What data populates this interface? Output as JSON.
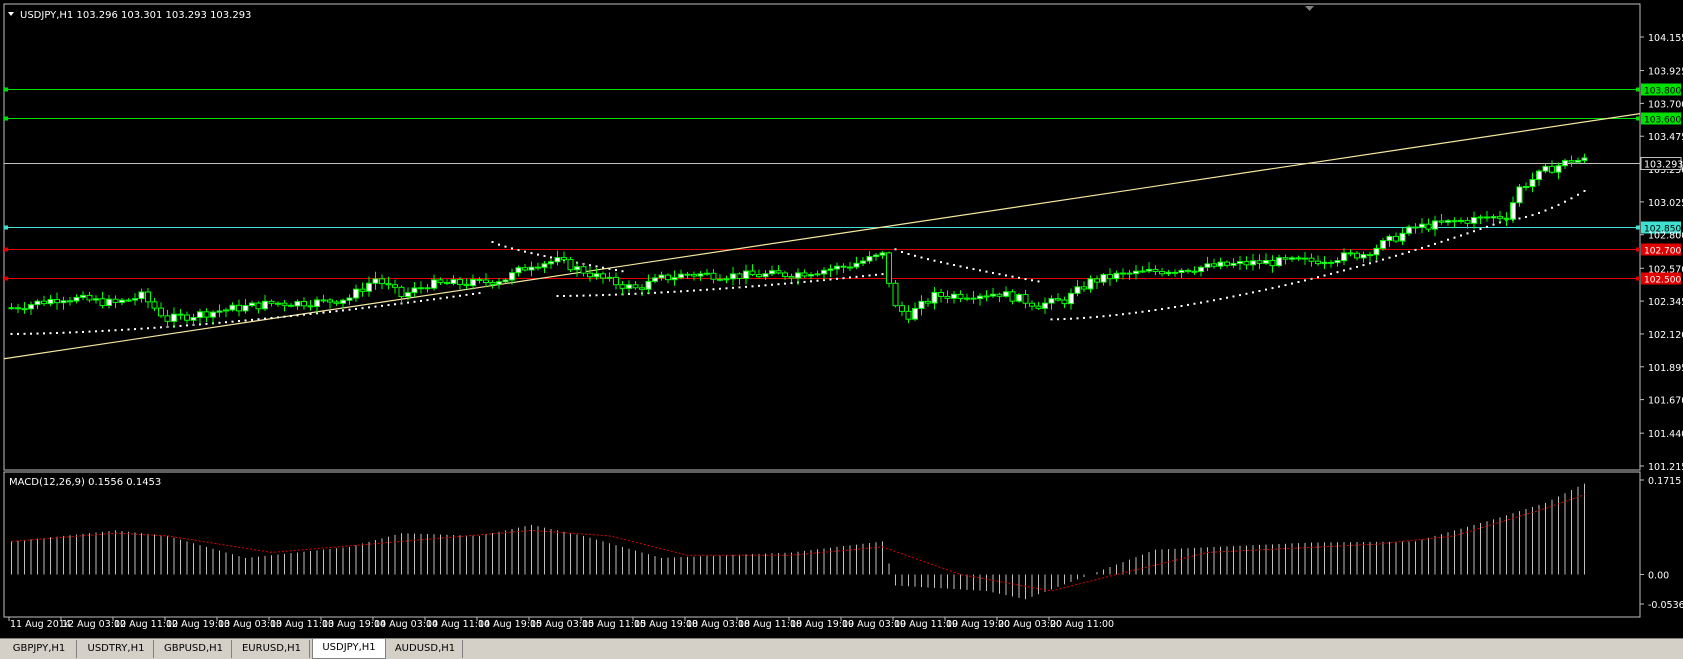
{
  "window": {
    "symbol_info": "USDJPY,H1  103.296 103.301 103.293 103.293",
    "collapse_icon": "triangle-down-icon"
  },
  "colors": {
    "background": "#000000",
    "frame": "#c0c0c0",
    "bull_candle": "#ffffff",
    "bear_candle": "#000000",
    "candle_wick": "#00ff00",
    "sar_dots": "#ffffff",
    "trendline": "#f5e6a0",
    "level_green": "#00e000",
    "level_cyan": "#40e0d0",
    "level_red": "#e00000",
    "bid_line": "#c0c0c0",
    "macd_hist": "#c0c0c0",
    "macd_signal": "#e00000"
  },
  "price_axis": {
    "ticks": [
      "104.155",
      "103.925",
      "103.700",
      "103.475",
      "103.250",
      "103.025",
      "102.800",
      "102.570",
      "102.345",
      "102.120",
      "101.895",
      "101.670",
      "101.440",
      "101.215"
    ],
    "current_price": "103.293"
  },
  "levels": [
    {
      "price": 103.8,
      "label": "103.800",
      "color": "#00e000",
      "text_color": "#000000"
    },
    {
      "price": 103.6,
      "label": "103.600",
      "color": "#00e000",
      "text_color": "#000000"
    },
    {
      "price": 102.85,
      "label": "102.850",
      "color": "#40e0d0",
      "text_color": "#000000"
    },
    {
      "price": 102.7,
      "label": "102.700",
      "color": "#e00000",
      "text_color": "#ffffff"
    },
    {
      "price": 102.5,
      "label": "102.500",
      "color": "#e00000",
      "text_color": "#ffffff"
    }
  ],
  "trendline": {
    "start": {
      "bar": 0,
      "price": 101.95
    },
    "end": {
      "bar": 252,
      "price": 103.63
    }
  },
  "time_axis": {
    "labels": [
      "11 Aug 2014",
      "12 Aug 03:00",
      "12 Aug 11:00",
      "12 Aug 19:00",
      "13 Aug 03:00",
      "13 Aug 11:00",
      "13 Aug 19:00",
      "14 Aug 03:00",
      "14 Aug 11:00",
      "14 Aug 19:00",
      "15 Aug 03:00",
      "15 Aug 11:00",
      "15 Aug 19:00",
      "18 Aug 03:00",
      "18 Aug 11:00",
      "18 Aug 19:00",
      "19 Aug 03:00",
      "19 Aug 11:00",
      "19 Aug 19:00",
      "20 Aug 03:00",
      "20 Aug 11:00"
    ],
    "bars_per_label": 8
  },
  "macd": {
    "title": "MACD(12,26,9) 0.1556 0.1453",
    "ticks": [
      "0.1715",
      "0.00",
      "-0.0536"
    ],
    "range": [
      -0.0536,
      0.1715
    ]
  },
  "chart_data": {
    "type": "candlestick",
    "timeframe": "H1",
    "price_range": [
      101.215,
      104.155
    ],
    "anchors": [
      [
        0,
        102.3
      ],
      [
        8,
        102.37
      ],
      [
        16,
        102.33
      ],
      [
        20,
        102.38
      ],
      [
        24,
        102.22
      ],
      [
        32,
        102.28
      ],
      [
        40,
        102.33
      ],
      [
        48,
        102.34
      ],
      [
        52,
        102.37
      ],
      [
        56,
        102.5
      ],
      [
        60,
        102.38
      ],
      [
        64,
        102.46
      ],
      [
        72,
        102.47
      ],
      [
        76,
        102.5
      ],
      [
        80,
        102.6
      ],
      [
        84,
        102.62
      ],
      [
        88,
        102.55
      ],
      [
        92,
        102.48
      ],
      [
        96,
        102.43
      ],
      [
        100,
        102.5
      ],
      [
        104,
        102.53
      ],
      [
        112,
        102.52
      ],
      [
        120,
        102.53
      ],
      [
        128,
        102.58
      ],
      [
        134,
        102.66
      ],
      [
        136,
        102.3
      ],
      [
        138,
        102.25
      ],
      [
        142,
        102.38
      ],
      [
        152,
        102.4
      ],
      [
        158,
        102.32
      ],
      [
        162,
        102.35
      ],
      [
        166,
        102.48
      ],
      [
        170,
        102.52
      ],
      [
        176,
        102.55
      ],
      [
        184,
        102.58
      ],
      [
        192,
        102.61
      ],
      [
        200,
        102.62
      ],
      [
        208,
        102.67
      ],
      [
        216,
        102.85
      ],
      [
        224,
        102.9
      ],
      [
        230,
        102.93
      ],
      [
        232,
        103.12
      ],
      [
        236,
        103.24
      ],
      [
        240,
        103.31
      ],
      [
        242,
        103.31
      ]
    ],
    "sar_segments": [
      {
        "from": 0,
        "to": 72,
        "start": 102.12,
        "end": 102.4,
        "side": "below"
      },
      {
        "from": 74,
        "to": 94,
        "start": 102.75,
        "end": 102.55,
        "side": "above"
      },
      {
        "from": 84,
        "to": 134,
        "start": 102.38,
        "end": 102.53,
        "side": "below"
      },
      {
        "from": 136,
        "to": 158,
        "start": 102.7,
        "end": 102.48,
        "side": "above"
      },
      {
        "from": 160,
        "to": 230,
        "start": 102.22,
        "end": 102.9,
        "side": "below"
      },
      {
        "from": 230,
        "to": 242,
        "start": 102.9,
        "end": 103.1,
        "side": "below"
      }
    ],
    "macd_anchors": [
      [
        0,
        0.06
      ],
      [
        16,
        0.08
      ],
      [
        24,
        0.07
      ],
      [
        36,
        0.03
      ],
      [
        52,
        0.05
      ],
      [
        60,
        0.075
      ],
      [
        72,
        0.07
      ],
      [
        80,
        0.09
      ],
      [
        88,
        0.07
      ],
      [
        100,
        0.03
      ],
      [
        120,
        0.04
      ],
      [
        134,
        0.06
      ],
      [
        136,
        -0.02
      ],
      [
        150,
        -0.03
      ],
      [
        156,
        -0.045
      ],
      [
        166,
        0.0
      ],
      [
        176,
        0.045
      ],
      [
        200,
        0.058
      ],
      [
        216,
        0.06
      ],
      [
        228,
        0.1
      ],
      [
        236,
        0.13
      ],
      [
        242,
        0.165
      ]
    ],
    "signal_anchors": [
      [
        0,
        0.06
      ],
      [
        16,
        0.075
      ],
      [
        24,
        0.07
      ],
      [
        40,
        0.04
      ],
      [
        60,
        0.06
      ],
      [
        80,
        0.08
      ],
      [
        92,
        0.07
      ],
      [
        104,
        0.035
      ],
      [
        120,
        0.035
      ],
      [
        134,
        0.05
      ],
      [
        146,
        0.0
      ],
      [
        160,
        -0.03
      ],
      [
        170,
        0.0
      ],
      [
        184,
        0.04
      ],
      [
        210,
        0.055
      ],
      [
        222,
        0.07
      ],
      [
        236,
        0.12
      ],
      [
        242,
        0.145
      ]
    ]
  },
  "tabs": [
    {
      "label": "GBPJPY,H1",
      "active": false
    },
    {
      "label": "USDTRY,H1",
      "active": false
    },
    {
      "label": "GBPUSD,H1",
      "active": false
    },
    {
      "label": "EURUSD,H1",
      "active": false
    },
    {
      "label": "USDJPY,H1",
      "active": true
    },
    {
      "label": "AUDUSD,H1",
      "active": false
    }
  ]
}
